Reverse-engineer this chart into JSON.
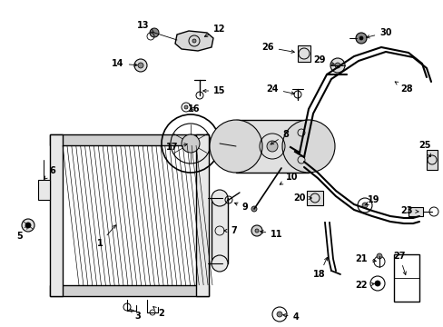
{
  "bg": "#ffffff",
  "fw": 4.89,
  "fh": 3.6,
  "dpi": 100
}
